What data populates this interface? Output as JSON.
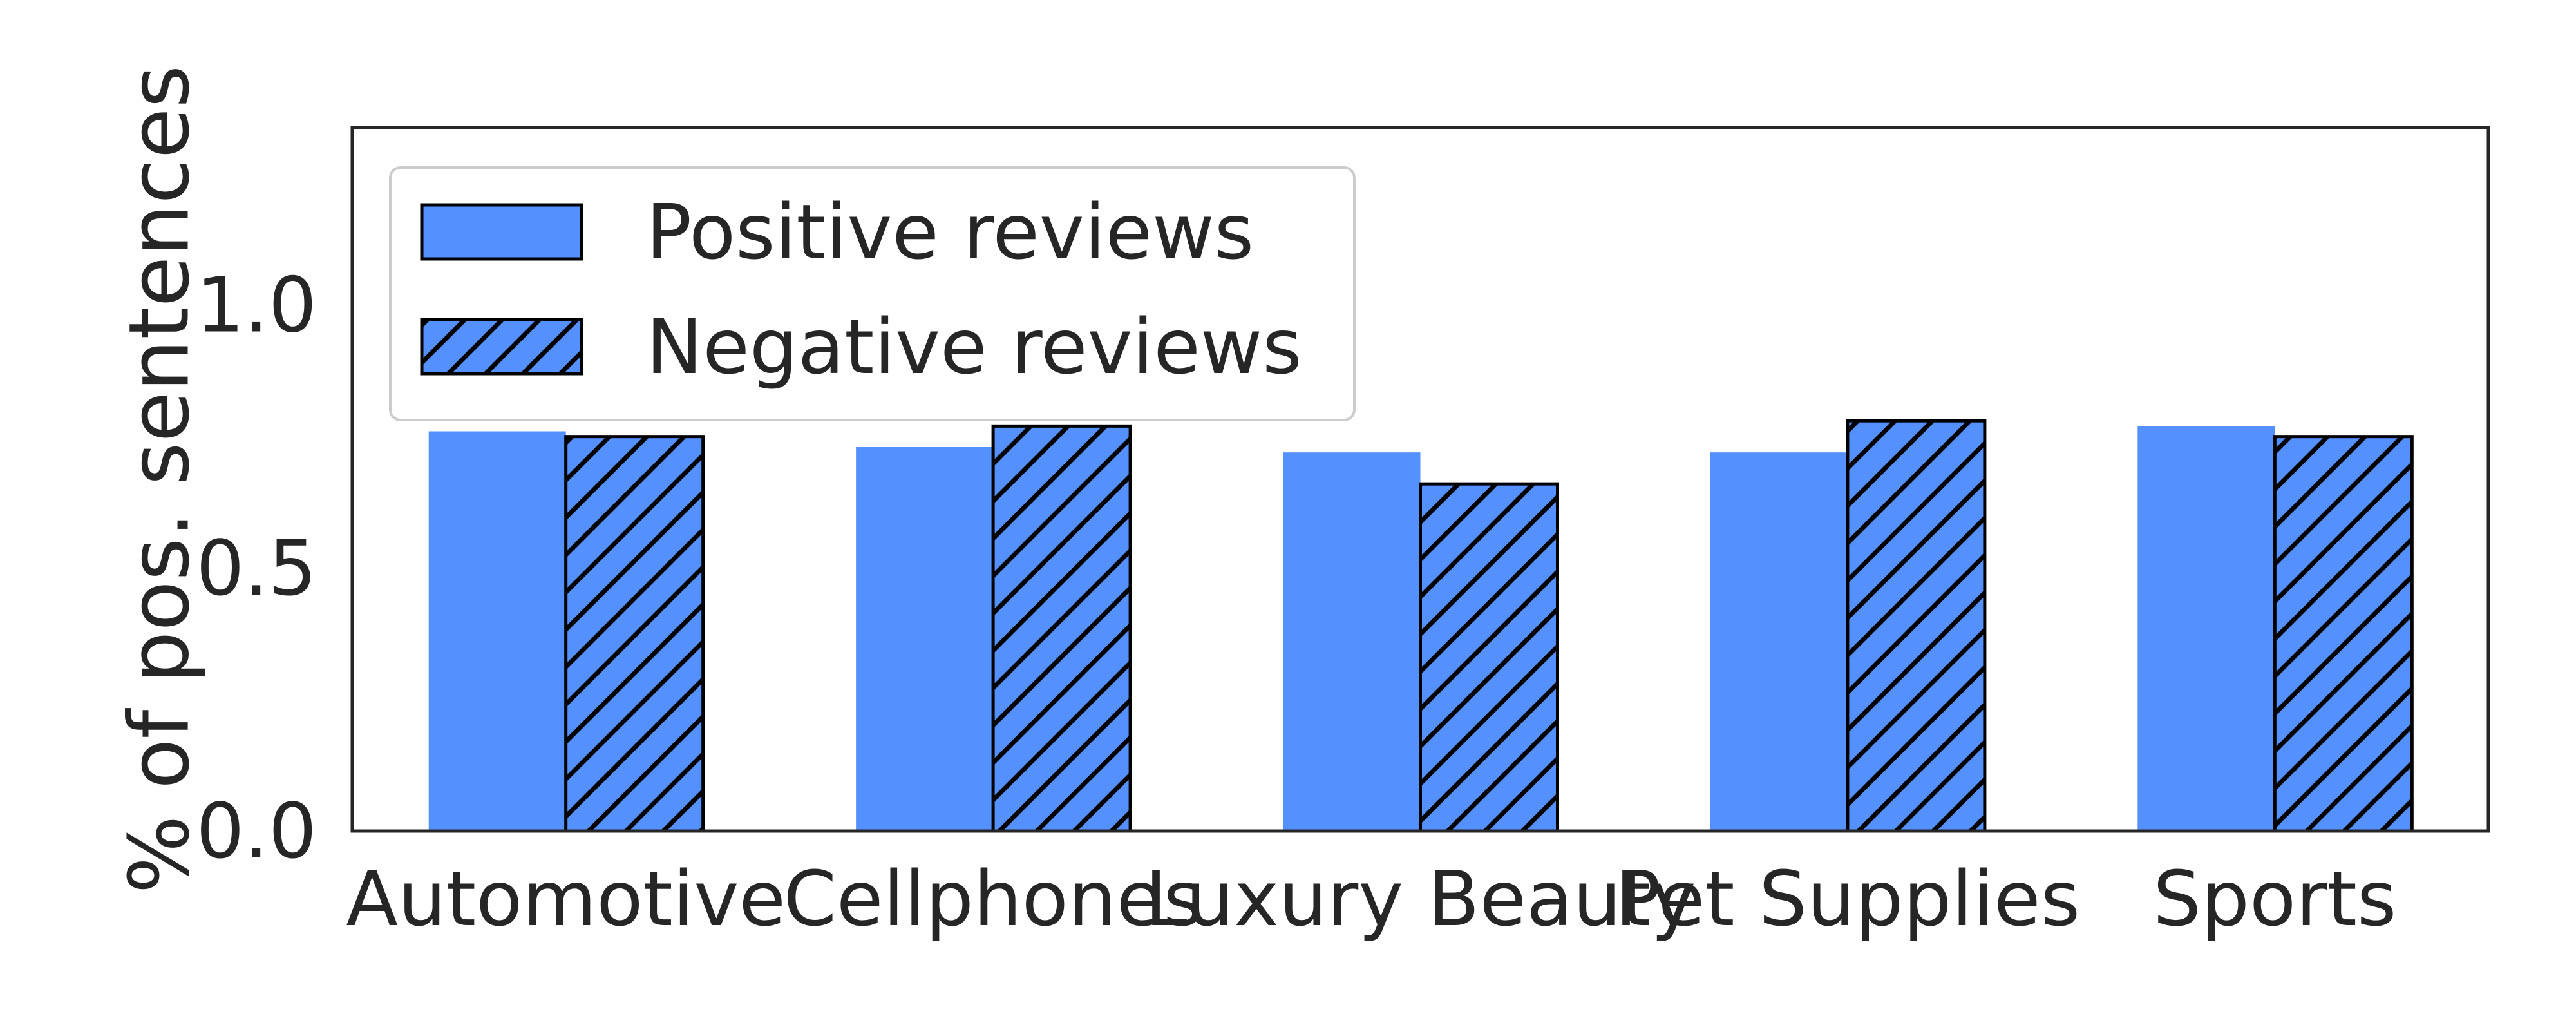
{
  "chart_data": {
    "type": "bar",
    "categories": [
      "Automotive",
      "Cellphones",
      "Luxury Beauty",
      "Pet Supplies",
      "Sports"
    ],
    "series": [
      {
        "name": "Positive reviews",
        "values": [
          0.76,
          0.73,
          0.72,
          0.72,
          0.77
        ],
        "hatch": false
      },
      {
        "name": "Negative reviews",
        "values": [
          0.75,
          0.77,
          0.66,
          0.78,
          0.75
        ],
        "hatch": true
      }
    ],
    "xlabel": "",
    "ylabel": "% of pos. sentences",
    "ylim": [
      0,
      1.3375
    ],
    "yticks": [
      "0.0",
      "0.5",
      "1.0"
    ],
    "ytick_values": [
      0,
      0.5,
      1.0
    ],
    "grid": false,
    "legend_location": "upper left",
    "colors": {
      "bar": "#5590ff",
      "edge": "#000000",
      "frame": "#262626"
    }
  }
}
